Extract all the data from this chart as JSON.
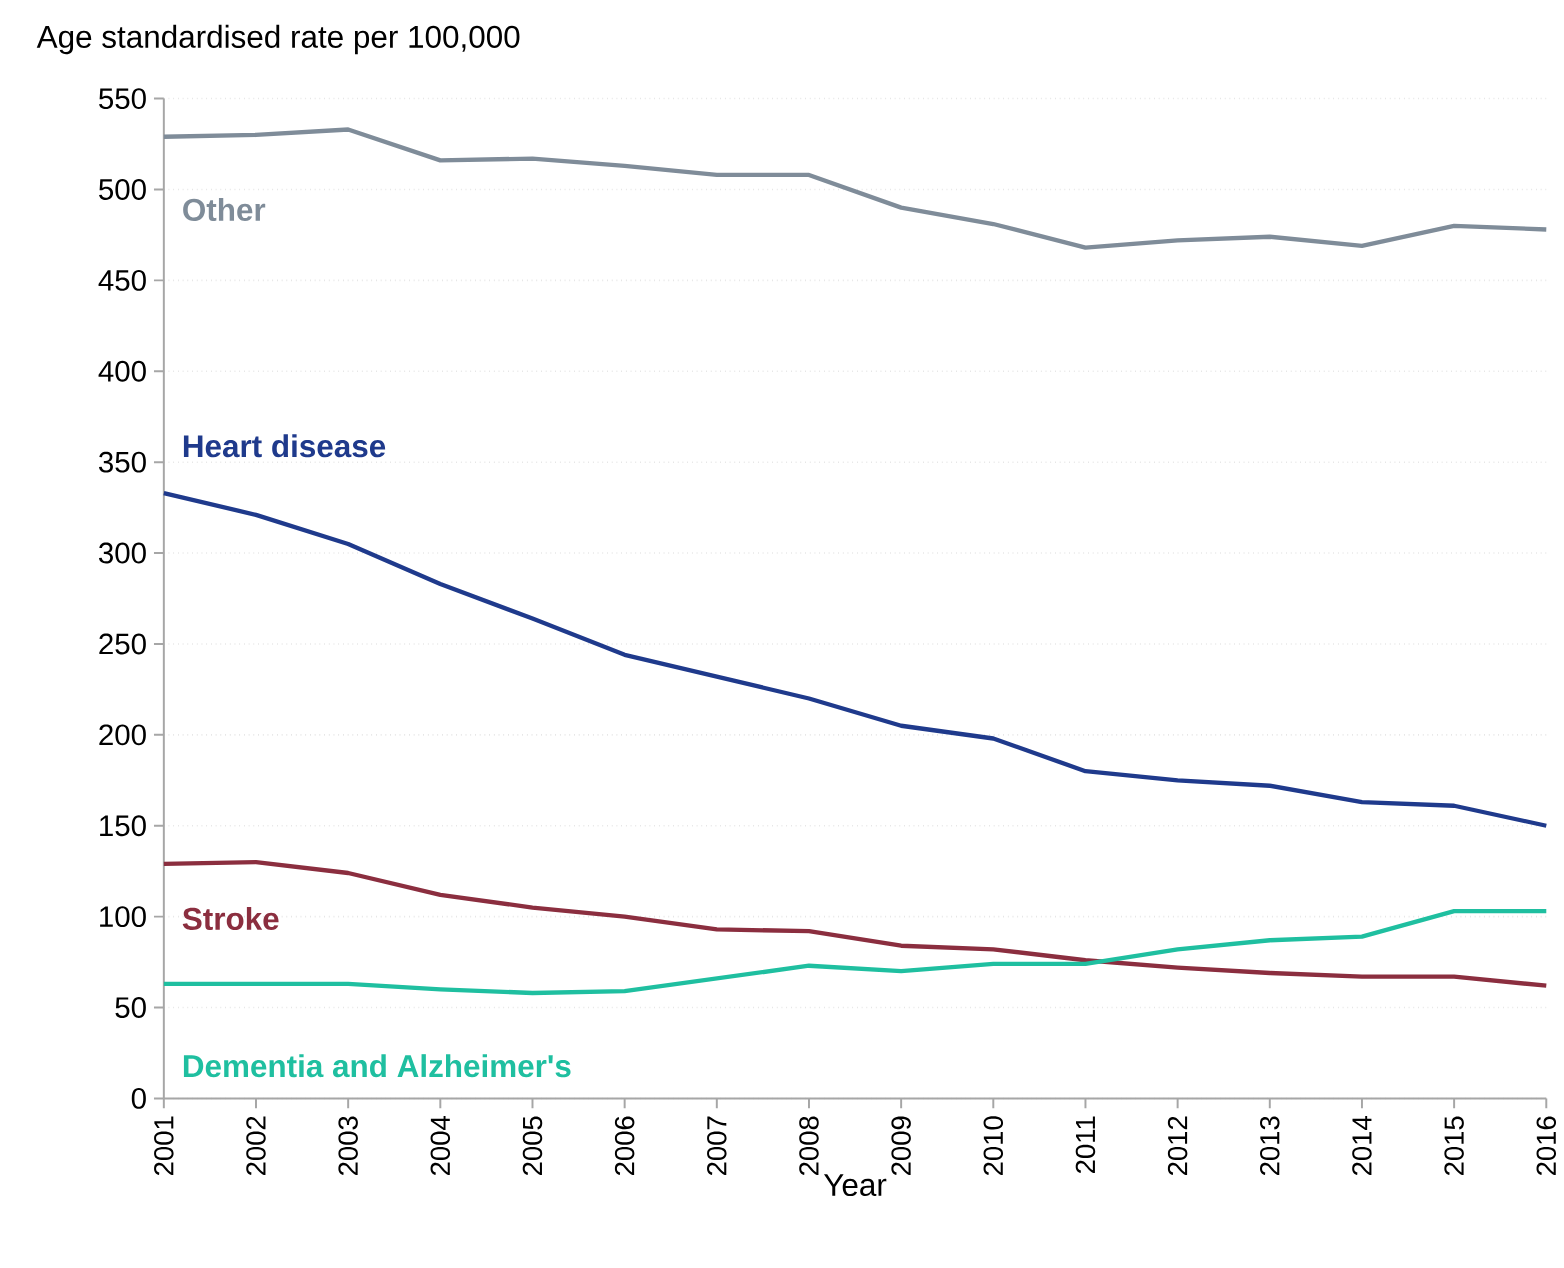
{
  "chart_data": {
    "type": "line",
    "ylabel": "Age standardised rate per 100,000",
    "xlabel": "Year",
    "x": [
      2001,
      2002,
      2003,
      2004,
      2005,
      2006,
      2007,
      2008,
      2009,
      2010,
      2011,
      2012,
      2013,
      2014,
      2015,
      2016
    ],
    "xlim": [
      2001,
      2016
    ],
    "xticks": [
      2001,
      2002,
      2003,
      2004,
      2005,
      2006,
      2007,
      2008,
      2009,
      2010,
      2011,
      2012,
      2013,
      2014,
      2015,
      2016
    ],
    "ylim": [
      0,
      550
    ],
    "yticks": [
      0,
      50,
      100,
      150,
      200,
      250,
      300,
      350,
      400,
      450,
      500,
      550
    ],
    "grid": "y",
    "legend": false,
    "marker": "none",
    "line_style": "solid",
    "series": [
      {
        "name": "Other",
        "color": "#7f8c99",
        "values": [
          529,
          530,
          533,
          516,
          517,
          513,
          508,
          508,
          490,
          481,
          468,
          472,
          474,
          469,
          480,
          478
        ]
      },
      {
        "name": "Heart disease",
        "color": "#1f3a8c",
        "values": [
          333,
          321,
          305,
          283,
          264,
          244,
          232,
          220,
          205,
          198,
          180,
          175,
          172,
          163,
          161,
          150
        ]
      },
      {
        "name": "Stroke",
        "color": "#8b2e3f",
        "values": [
          129,
          130,
          124,
          112,
          105,
          100,
          93,
          92,
          84,
          82,
          76,
          72,
          69,
          67,
          67,
          62
        ]
      },
      {
        "name": "Dementia and Alzheimer's",
        "color": "#1fbfa0",
        "values": [
          63,
          63,
          63,
          60,
          58,
          59,
          66,
          73,
          70,
          74,
          74,
          82,
          87,
          89,
          103,
          103
        ]
      }
    ]
  }
}
